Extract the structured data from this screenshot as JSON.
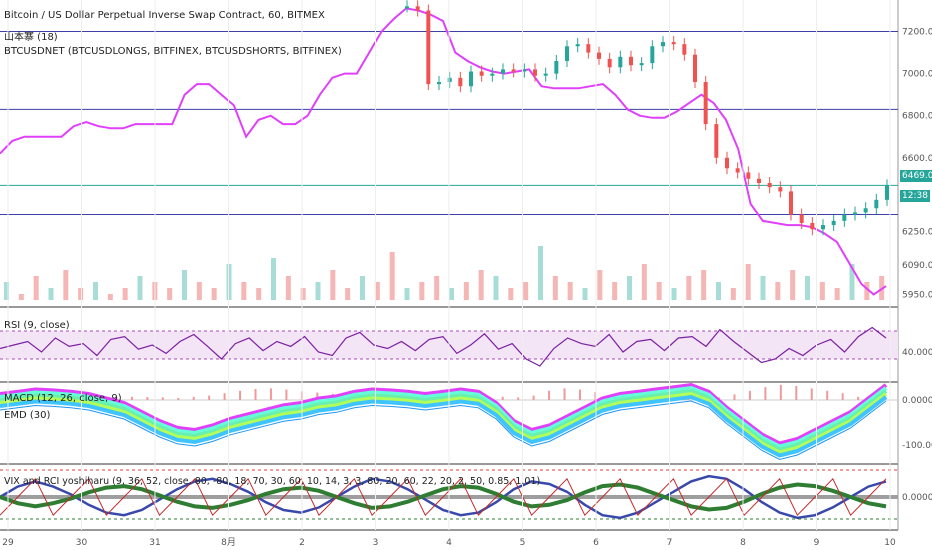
{
  "header": {
    "line1": "Bitcoin / US Dollar Perpetual Inverse Swap Contract, 60, BITMEX",
    "line2": "山本寨 (18)",
    "line3": "BTCUSDNET (BTCUSDLONGS, BITFINEX, BTCUSDSHORTS, BITFINEX)"
  },
  "panes": {
    "rsi": "RSI (9, close)",
    "macd": "MACD (12, 26, close, 9)",
    "emd": "EMD (30)",
    "vix": "VIX and RCI yoshiharu (9, 36, 52, close, 80, -80, 18, 70, 30, 60, 10, 14, 3, 3, 80, 20, 60, 22, 20, 2, 50, 0.85, 1.01)"
  },
  "badges": {
    "price": "6469.0",
    "countdown": "12:38"
  },
  "colors": {
    "bull": "#26a69a",
    "bear": "#ef5350",
    "sentiment": "#e040fb",
    "hline": "#3f3fa8",
    "priceline": "#26a69a"
  },
  "chart_data": [
    {
      "type": "line",
      "name": "price",
      "x_ticks": [
        "29",
        "30",
        "31",
        "8月",
        "2",
        "3",
        "4",
        "5",
        "6",
        "7",
        "8",
        "9",
        "10"
      ],
      "y_ticks": [
        "7200.0",
        "7000.0",
        "6800.0",
        "6600.0",
        "6250.0",
        "6090.0",
        "5950.0"
      ],
      "horizontal_lines": [
        7200,
        6830,
        6469,
        6330
      ],
      "candles_close": [
        7320,
        7300,
        6950,
        6960,
        6980,
        6940,
        7010,
        6990,
        7000,
        7020,
        7010,
        7020,
        6990,
        7000,
        7060,
        7130,
        7140,
        7100,
        7070,
        7030,
        7080,
        7040,
        7050,
        7130,
        7150,
        7140,
        7090,
        6960,
        6760,
        6600,
        6550,
        6530,
        6500,
        6480,
        6460,
        6440,
        6330,
        6290,
        6260,
        6280,
        6300,
        6330,
        6340,
        6360,
        6400,
        6469
      ],
      "sentiment": [
        6620,
        6680,
        6700,
        6700,
        6700,
        6700,
        6750,
        6770,
        6750,
        6740,
        6740,
        6760,
        6760,
        6760,
        6760,
        6900,
        6950,
        6950,
        6900,
        6850,
        6700,
        6780,
        6800,
        6760,
        6760,
        6800,
        6900,
        6980,
        7000,
        7000,
        7100,
        7200,
        7260,
        7310,
        7300,
        7280,
        7250,
        7100,
        7060,
        7030,
        7010,
        7000,
        7010,
        7020,
        6940,
        6930,
        6930,
        6930,
        6940,
        6950,
        6900,
        6830,
        6800,
        6790,
        6790,
        6820,
        6860,
        6900,
        6860,
        6780,
        6640,
        6380,
        6300,
        6290,
        6280,
        6280,
        6270,
        6240,
        6200,
        6100,
        6000,
        5950,
        5990
      ],
      "volume": [
        3,
        1,
        4,
        2,
        5,
        2,
        3,
        1,
        2,
        4,
        3,
        2,
        5,
        3,
        2,
        6,
        3,
        2,
        7,
        4,
        2,
        3,
        5,
        2,
        4,
        3,
        8,
        2,
        3,
        4,
        2,
        3,
        5,
        4,
        2,
        3,
        9,
        4,
        3,
        2,
        5,
        3,
        4,
        6,
        3,
        2,
        4,
        5,
        3,
        2,
        6,
        4,
        3,
        5,
        4,
        3,
        2,
        6,
        3,
        4
      ]
    },
    {
      "type": "line",
      "name": "RSI (9, close)",
      "y_ticks": [
        "40.0000"
      ],
      "bands": [
        70,
        30
      ],
      "values": [
        45,
        50,
        55,
        40,
        60,
        48,
        52,
        35,
        58,
        62,
        44,
        50,
        38,
        55,
        65,
        48,
        30,
        52,
        60,
        42,
        55,
        48,
        62,
        40,
        35,
        60,
        68,
        50,
        45,
        55,
        42,
        58,
        62,
        38,
        50,
        66,
        44,
        52,
        30,
        20,
        45,
        60,
        52,
        48,
        65,
        40,
        55,
        58,
        42,
        60,
        62,
        48,
        72,
        55,
        40,
        25,
        30,
        45,
        35,
        50,
        58,
        40,
        62,
        75,
        60
      ]
    },
    {
      "type": "line",
      "name": "MACD (12, 26, close, 9)",
      "y_ticks": [
        "0.0000",
        "-100.0000"
      ],
      "macd": [
        0,
        5,
        10,
        8,
        5,
        0,
        -10,
        -20,
        -40,
        -60,
        -75,
        -80,
        -70,
        -55,
        -45,
        -35,
        -25,
        -20,
        -10,
        -5,
        5,
        10,
        8,
        5,
        0,
        5,
        10,
        5,
        -20,
        -60,
        -80,
        -70,
        -50,
        -30,
        -10,
        0,
        5,
        10,
        15,
        20,
        5,
        -30,
        -60,
        -90,
        -110,
        -100,
        -80,
        -60,
        -40,
        -10,
        20
      ]
    },
    {
      "type": "line",
      "name": "VIX and RCI yoshiharu",
      "y_ticks": [
        "0.0000"
      ],
      "rci_long": [
        0,
        40,
        60,
        40,
        10,
        -30,
        -60,
        -70,
        -50,
        -10,
        30,
        60,
        70,
        50,
        20,
        -20,
        -50,
        -60,
        -40,
        0,
        40,
        70,
        60,
        30,
        -10,
        -50,
        -70,
        -60,
        -20,
        30,
        60,
        50,
        20,
        -30,
        -70,
        -80,
        -60,
        -20,
        20,
        60,
        80,
        70,
        30,
        -20,
        -60,
        -80,
        -70,
        -40,
        0,
        40,
        60
      ]
    }
  ]
}
